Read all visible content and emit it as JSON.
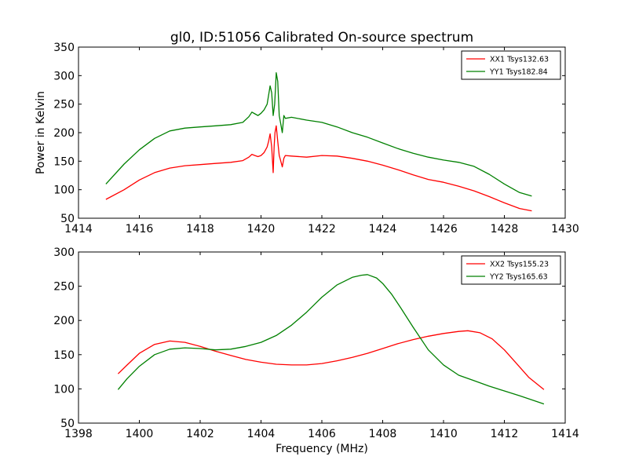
{
  "chart_data": [
    {
      "type": "line",
      "title": "gl0, ID:51056 Calibrated On-source spectrum",
      "xlabel": "",
      "ylabel": "Power in Kelvin",
      "xlim": [
        1414,
        1430
      ],
      "ylim": [
        50,
        350
      ],
      "xticks": [
        1414,
        1416,
        1418,
        1420,
        1422,
        1424,
        1426,
        1428,
        1430
      ],
      "yticks": [
        50,
        100,
        150,
        200,
        250,
        300,
        350
      ],
      "legend_position": "top-right",
      "series": [
        {
          "name": "XX1 Tsys132.63",
          "color": "#ff0000",
          "x": [
            1414.9,
            1415.5,
            1416.0,
            1416.5,
            1417.0,
            1417.5,
            1418.0,
            1418.5,
            1419.0,
            1419.4,
            1419.6,
            1419.7,
            1419.8,
            1419.9,
            1420.0,
            1420.1,
            1420.2,
            1420.25,
            1420.3,
            1420.35,
            1420.4,
            1420.43,
            1420.46,
            1420.5,
            1420.55,
            1420.6,
            1420.65,
            1420.7,
            1420.75,
            1420.8,
            1421.0,
            1421.5,
            1422.0,
            1422.5,
            1423.0,
            1423.5,
            1424.0,
            1424.5,
            1425.0,
            1425.5,
            1426.0,
            1426.5,
            1427.0,
            1427.5,
            1428.0,
            1428.5,
            1428.9
          ],
          "y": [
            83,
            100,
            117,
            130,
            138,
            142,
            144,
            146,
            148,
            151,
            157,
            162,
            160,
            158,
            160,
            165,
            175,
            185,
            198,
            175,
            130,
            175,
            200,
            212,
            185,
            160,
            150,
            140,
            155,
            160,
            159,
            157,
            160,
            159,
            155,
            150,
            143,
            135,
            126,
            118,
            113,
            106,
            98,
            88,
            77,
            67,
            63
          ]
        },
        {
          "name": "YY1 Tsys182.84",
          "color": "#008000",
          "x": [
            1414.9,
            1415.5,
            1416.0,
            1416.5,
            1417.0,
            1417.5,
            1418.0,
            1418.5,
            1419.0,
            1419.4,
            1419.6,
            1419.7,
            1419.8,
            1419.9,
            1420.0,
            1420.1,
            1420.2,
            1420.3,
            1420.35,
            1420.4,
            1420.45,
            1420.5,
            1420.55,
            1420.6,
            1420.65,
            1420.7,
            1420.75,
            1420.8,
            1421.0,
            1421.5,
            1422.0,
            1422.5,
            1423.0,
            1423.5,
            1424.0,
            1424.5,
            1425.0,
            1425.5,
            1426.0,
            1426.5,
            1427.0,
            1427.5,
            1428.0,
            1428.5,
            1428.9
          ],
          "y": [
            110,
            145,
            170,
            190,
            203,
            208,
            210,
            212,
            214,
            218,
            228,
            236,
            233,
            230,
            234,
            240,
            250,
            282,
            270,
            230,
            250,
            305,
            290,
            230,
            215,
            200,
            230,
            225,
            227,
            222,
            218,
            210,
            200,
            192,
            182,
            172,
            164,
            157,
            152,
            148,
            141,
            127,
            110,
            95,
            89
          ]
        }
      ]
    },
    {
      "type": "line",
      "title": "",
      "xlabel": "Frequency (MHz)",
      "ylabel": "",
      "xlim": [
        1398,
        1414
      ],
      "ylim": [
        50,
        300
      ],
      "xticks": [
        1398,
        1400,
        1402,
        1404,
        1406,
        1408,
        1410,
        1412,
        1414
      ],
      "yticks": [
        50,
        100,
        150,
        200,
        250,
        300
      ],
      "legend_position": "top-right",
      "series": [
        {
          "name": "XX2 Tsys155.23",
          "color": "#ff0000",
          "x": [
            1399.3,
            1399.6,
            1400.0,
            1400.5,
            1401.0,
            1401.5,
            1402.0,
            1402.5,
            1403.0,
            1403.5,
            1404.0,
            1404.5,
            1405.0,
            1405.5,
            1406.0,
            1406.5,
            1407.0,
            1407.5,
            1408.0,
            1408.5,
            1409.0,
            1409.5,
            1410.0,
            1410.5,
            1410.8,
            1411.2,
            1411.6,
            1412.0,
            1412.4,
            1412.8,
            1413.3
          ],
          "y": [
            122,
            135,
            152,
            165,
            170,
            168,
            162,
            155,
            149,
            143,
            139,
            136,
            135,
            135,
            137,
            141,
            146,
            152,
            159,
            166,
            172,
            177,
            181,
            184,
            185,
            182,
            173,
            157,
            137,
            117,
            99
          ]
        },
        {
          "name": "YY2 Tsys165.63",
          "color": "#008000",
          "x": [
            1399.3,
            1399.6,
            1400.0,
            1400.5,
            1401.0,
            1401.5,
            1402.0,
            1402.5,
            1403.0,
            1403.5,
            1404.0,
            1404.5,
            1405.0,
            1405.5,
            1406.0,
            1406.5,
            1407.0,
            1407.3,
            1407.5,
            1407.8,
            1408.0,
            1408.3,
            1408.6,
            1409.0,
            1409.5,
            1410.0,
            1410.5,
            1411.0,
            1411.5,
            1412.0,
            1412.5,
            1413.3
          ],
          "y": [
            99,
            115,
            133,
            150,
            158,
            160,
            159,
            157,
            158,
            162,
            168,
            178,
            193,
            212,
            234,
            252,
            263,
            266,
            267,
            262,
            254,
            238,
            218,
            190,
            157,
            135,
            120,
            112,
            104,
            97,
            90,
            78
          ]
        }
      ]
    }
  ]
}
